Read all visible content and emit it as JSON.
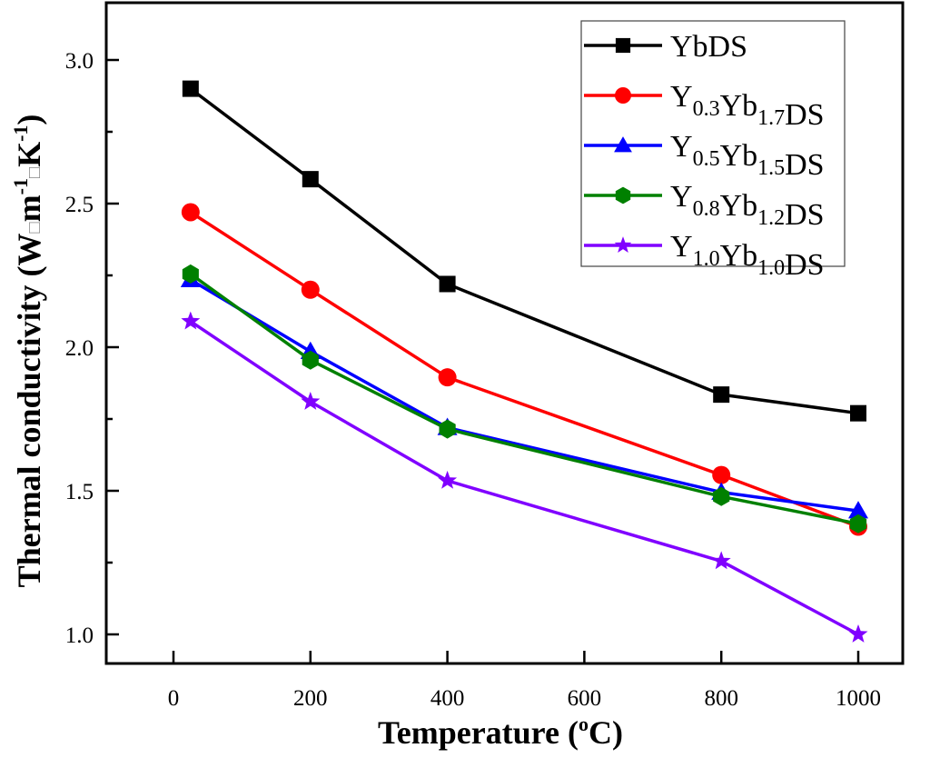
{
  "chart_data": {
    "type": "line",
    "title": "",
    "xlabel": "Temperature (",
    "xlabel_sup": "o",
    "xlabel_end": "C)",
    "ylabel_parts": {
      "main": "Thermal conductivity (W",
      "sep1": "□",
      "m": "m",
      "m_sup": "-1",
      "sep2": "□",
      "k": "K",
      "k_sup": "-1",
      "end": ")"
    },
    "xlim": [
      -100,
      1100
    ],
    "ylim": [
      0.9,
      3.2
    ],
    "xticks": [
      0,
      200,
      400,
      600,
      800,
      1000
    ],
    "xtick_labels": [
      "0",
      "200",
      "400",
      "600",
      "800",
      "1000"
    ],
    "yticks": [
      1.0,
      1.5,
      2.0,
      2.5,
      3.0
    ],
    "ytick_labels": [
      "1.0",
      "1.5",
      "2.0",
      "2.5",
      "3.0"
    ],
    "y_minor_ticks": [
      1.25,
      1.75,
      2.25,
      2.75
    ],
    "x_minor_ticks": [],
    "grid": false,
    "legend_position": "top-right",
    "x": [
      25,
      200,
      400,
      800,
      1000
    ],
    "series": [
      {
        "name": "YbDS",
        "label_parts": [
          [
            "YbDS",
            ""
          ]
        ],
        "color": "#000000",
        "marker": "square",
        "values": [
          2.9,
          2.585,
          2.22,
          1.835,
          1.77
        ]
      },
      {
        "name": "Y0.3Yb1.7DS",
        "label_parts": [
          [
            "Y",
            "0.3"
          ],
          [
            "Yb",
            "1.7"
          ],
          [
            "DS",
            ""
          ]
        ],
        "color": "#ff0000",
        "marker": "circle",
        "values": [
          2.47,
          2.2,
          1.895,
          1.555,
          1.375
        ]
      },
      {
        "name": "Y0.5Yb1.5DS",
        "label_parts": [
          [
            "Y",
            "0.5"
          ],
          [
            "Yb",
            "1.5"
          ],
          [
            "DS",
            ""
          ]
        ],
        "color": "#0000ff",
        "marker": "triangle",
        "values": [
          2.235,
          1.985,
          1.72,
          1.495,
          1.43
        ]
      },
      {
        "name": "Y0.8Yb1.2DS",
        "label_parts": [
          [
            "Y",
            "0.8"
          ],
          [
            "Yb",
            "1.2"
          ],
          [
            "DS",
            ""
          ]
        ],
        "color": "#008000",
        "marker": "hexagon",
        "values": [
          2.255,
          1.955,
          1.715,
          1.48,
          1.385
        ]
      },
      {
        "name": "Y1.0Yb1.0DS",
        "label_parts": [
          [
            "Y",
            "1.0"
          ],
          [
            "Yb",
            "1.0"
          ],
          [
            "DS",
            ""
          ]
        ],
        "color": "#8000ff",
        "marker": "star",
        "values": [
          2.09,
          1.81,
          1.535,
          1.255,
          1.0
        ]
      }
    ]
  }
}
